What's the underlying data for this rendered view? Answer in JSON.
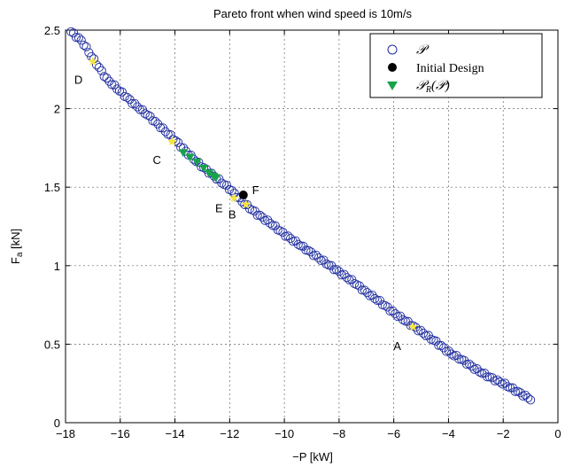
{
  "chart_data": {
    "type": "scatter",
    "title": "Pareto front when wind speed is 10m/s",
    "xlabel": "−P [kW]",
    "ylabel": "F",
    "ylabel_sub": "a",
    "ylabel_unit": " [kN]",
    "xlim": [
      -18,
      0
    ],
    "ylim": [
      0,
      2.5
    ],
    "xticks": [
      -18,
      -16,
      -14,
      -12,
      -10,
      -8,
      -6,
      -4,
      -2,
      0
    ],
    "xtick_labels": [
      "−18",
      "−16",
      "−14",
      "−12",
      "−10",
      "−8",
      "−6",
      "−4",
      "−2",
      "0"
    ],
    "yticks": [
      0,
      0.5,
      1,
      1.5,
      2,
      2.5
    ],
    "ytick_labels": [
      "0",
      "0.5",
      "1",
      "1.5",
      "2",
      "2.5"
    ],
    "grid": true,
    "legend_position": "top-right",
    "colors": {
      "front": "#1f2d9e",
      "initial": "#000000",
      "reduced": "#16a34a",
      "highlight": "#f5e642"
    },
    "front_curve": [
      [
        -17.8,
        2.49
      ],
      [
        -17.4,
        2.43
      ],
      [
        -17.0,
        2.32
      ],
      [
        -16.5,
        2.19
      ],
      [
        -16.0,
        2.11
      ],
      [
        -15.5,
        2.03
      ],
      [
        -15.0,
        1.96
      ],
      [
        -14.5,
        1.88
      ],
      [
        -14.0,
        1.8
      ],
      [
        -13.5,
        1.71
      ],
      [
        -13.0,
        1.63
      ],
      [
        -12.5,
        1.56
      ],
      [
        -12.0,
        1.49
      ],
      [
        -11.5,
        1.4
      ],
      [
        -11.0,
        1.33
      ],
      [
        -10.5,
        1.27
      ],
      [
        -10.0,
        1.2
      ],
      [
        -9.5,
        1.14
      ],
      [
        -9.0,
        1.08
      ],
      [
        -8.5,
        1.02
      ],
      [
        -8.0,
        0.96
      ],
      [
        -7.5,
        0.9
      ],
      [
        -7.0,
        0.83
      ],
      [
        -6.5,
        0.77
      ],
      [
        -6.0,
        0.7
      ],
      [
        -5.5,
        0.64
      ],
      [
        -5.0,
        0.58
      ],
      [
        -4.5,
        0.52
      ],
      [
        -4.0,
        0.45
      ],
      [
        -3.5,
        0.4
      ],
      [
        -3.0,
        0.34
      ],
      [
        -2.5,
        0.29
      ],
      [
        -2.0,
        0.25
      ],
      [
        -1.5,
        0.2
      ],
      [
        -1.0,
        0.15
      ]
    ],
    "series": [
      {
        "name": "𝒫",
        "marker": "open-circle"
      },
      {
        "name": "Initial Design",
        "marker": "filled-circle",
        "points": [
          [
            -11.5,
            1.45
          ]
        ]
      },
      {
        "name": "𝒫_R(𝒫)",
        "marker": "filled-triangle-down",
        "points": [
          [
            -13.7,
            1.72
          ],
          [
            -13.45,
            1.69
          ],
          [
            -13.2,
            1.66
          ],
          [
            -12.95,
            1.62
          ],
          [
            -12.75,
            1.59
          ],
          [
            -12.6,
            1.57
          ],
          [
            -12.5,
            1.56
          ]
        ]
      }
    ],
    "highlighted_points": [
      {
        "label": "A",
        "x": -5.3,
        "y": 0.61,
        "label_anchor": "below-left"
      },
      {
        "label": "B",
        "x": -11.4,
        "y": 1.39,
        "label_anchor": "below-left"
      },
      {
        "label": "C",
        "x": -14.1,
        "y": 1.79,
        "label_anchor": "below-left"
      },
      {
        "label": "D",
        "x": -17.0,
        "y": 2.3,
        "label_anchor": "below-left"
      },
      {
        "label": "E",
        "x": -11.85,
        "y": 1.43,
        "label_anchor": "below-left"
      },
      {
        "label": "F",
        "x": -11.5,
        "y": 1.45,
        "label_anchor": "right"
      }
    ],
    "legend": {
      "entries": [
        {
          "key": "P",
          "label_main": "𝒫",
          "label_rest": ""
        },
        {
          "key": "initial",
          "label_main": "Initial Design",
          "label_rest": ""
        },
        {
          "key": "PR",
          "label_main": "𝒫",
          "label_sub": "R",
          "label_rest": "(𝒫)"
        }
      ]
    }
  }
}
